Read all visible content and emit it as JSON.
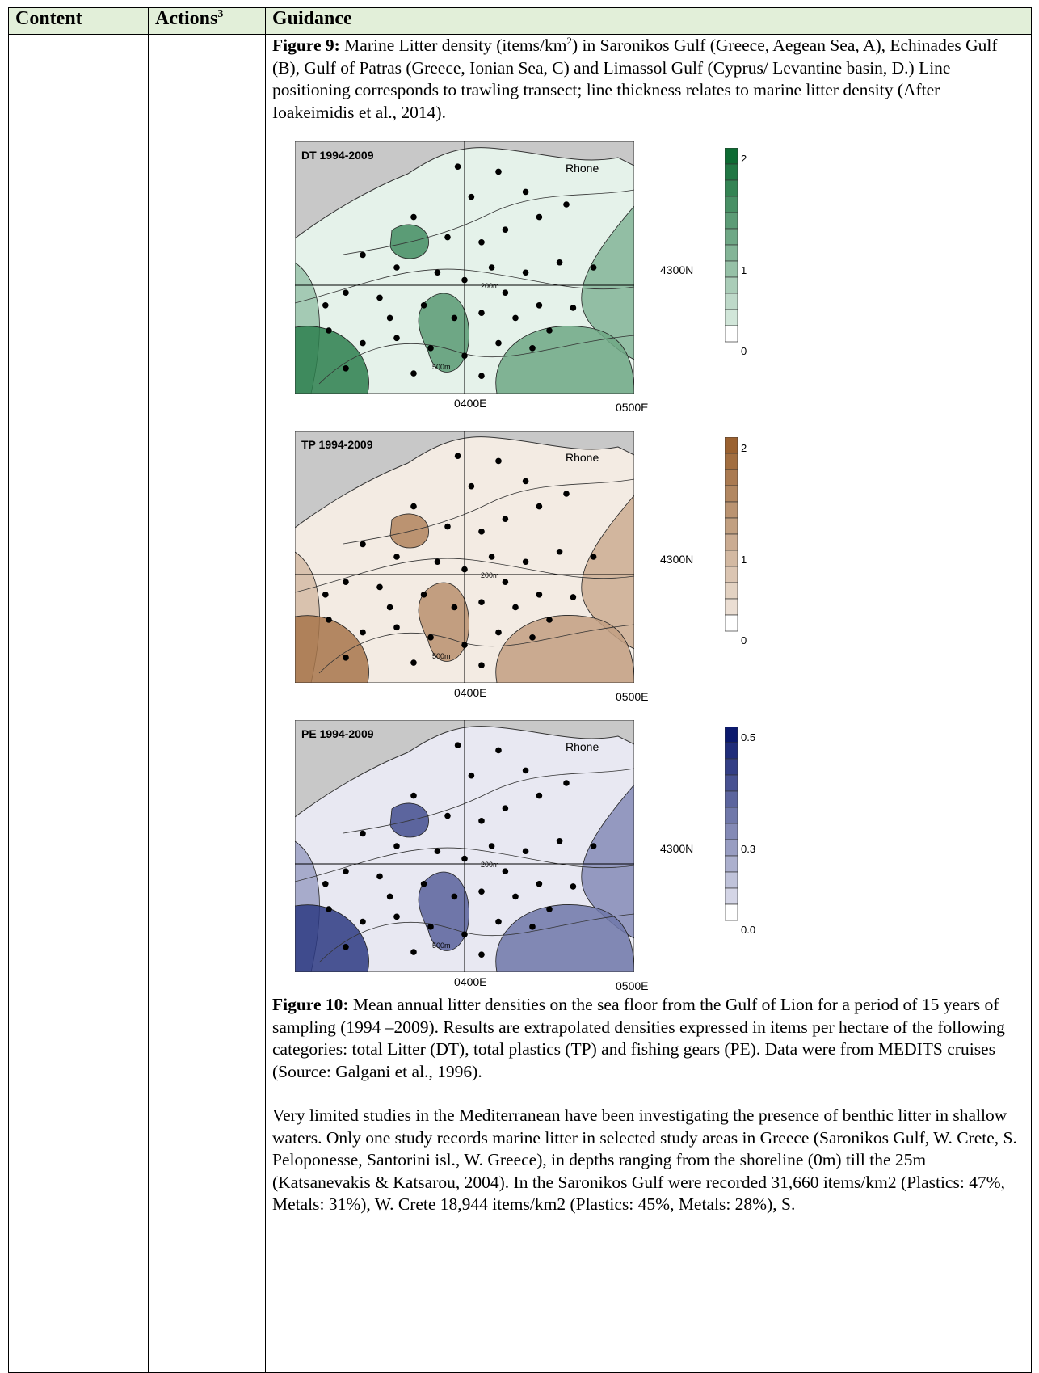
{
  "table": {
    "headers": {
      "content": "Content",
      "actions": "Actions",
      "actions_sup": "3",
      "guidance": "Guidance"
    }
  },
  "fig9": {
    "label": "Figure 9:",
    "pre": " Marine Litter density (items/km",
    "sup": "2",
    "post": ") in Saronikos Gulf (Greece, Aegean Sea, A), Echinades Gulf (B), Gulf of Patras (Greece, Ionian Sea, C) and Limassol Gulf (Cyprus/ Levantine basin, D.) Line positioning corresponds to trawling transect; line thickness relates to marine litter density (After Ioakeimidis et al., 2014)."
  },
  "maps": [
    {
      "title": "DT 1994-2009",
      "river": "Rhone",
      "lat": "4300N",
      "lon1": "0400E",
      "lon2": "0500E",
      "depth1": "200m",
      "depth2": "500m",
      "legend": [
        "2",
        "1",
        "0"
      ],
      "color_dark": "#0d6b33",
      "color_light": "#e5f2ea"
    },
    {
      "title": "TP 1994-2009",
      "river": "Rhone",
      "lat": "4300N",
      "lon1": "0400E",
      "lon2": "0500E",
      "depth1": "200m",
      "depth2": "500m",
      "legend": [
        "2",
        "1",
        "0"
      ],
      "color_dark": "#9a6130",
      "color_light": "#f3ebe3"
    },
    {
      "title": "PE 1994-2009",
      "river": "Rhone",
      "lat": "4300N",
      "lon1": "0400E",
      "lon2": "0500E",
      "depth1": "200m",
      "depth2": "500m",
      "legend": [
        "0.5",
        "0.3",
        "0.0"
      ],
      "color_dark": "#0c1a6e",
      "color_light": "#e8e8f2"
    }
  ],
  "fig10": {
    "label": "Figure 10:",
    "text": " Mean annual litter densities on the sea floor from the Gulf of Lion for a period of 15 years of sampling (1994 –2009). Results are extrapolated densities expressed in items per hectare of the following categories: total Litter (DT), total plastics (TP) and fishing gears (PE). Data were from MEDITS cruises (Source: Galgani et al., 1996)."
  },
  "body_text": "Very limited studies in the Mediterranean have been investigating the presence of benthic litter in shallow waters. Only one study records marine litter in selected study areas in Greece (Saronikos Gulf, W. Crete, S. Peloponesse, Santorini isl., W. Greece), in depths ranging from the shoreline (0m) till the 25m (Katsanevakis & Katsarou, 2004). In the Saronikos Gulf were recorded 31,660 items/km2 (Plastics: 47%, Metals: 31%), W. Crete 18,944 items/km2 (Plastics: 45%, Metals: 28%), S."
}
